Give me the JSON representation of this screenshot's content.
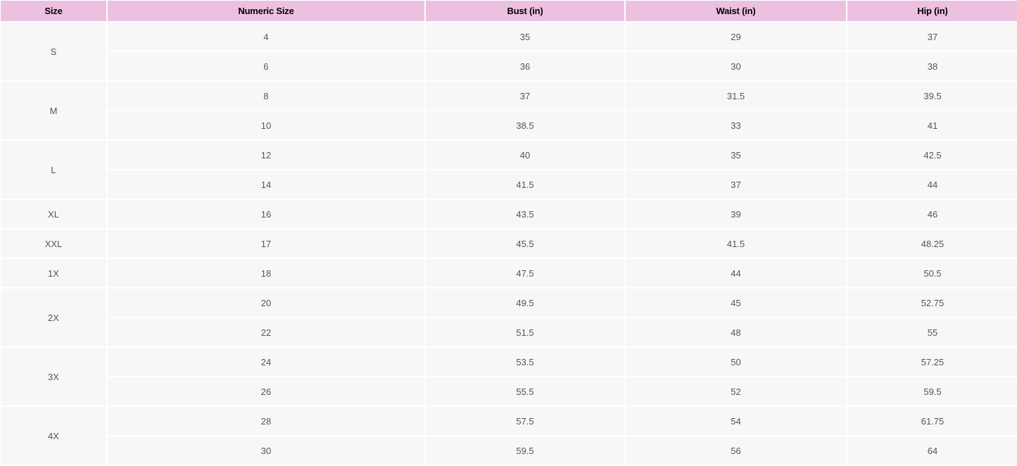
{
  "headers": [
    "Size",
    "Numeric Size",
    "Bust (in)",
    "Waist (in)",
    "Hip (in)"
  ],
  "groups": [
    {
      "size": "S",
      "rows": [
        [
          "4",
          "35",
          "29",
          "37"
        ],
        [
          "6",
          "36",
          "30",
          "38"
        ]
      ]
    },
    {
      "size": "M",
      "rows": [
        [
          "8",
          "37",
          "31.5",
          "39.5"
        ],
        [
          "10",
          "38.5",
          "33",
          "41"
        ]
      ]
    },
    {
      "size": "L",
      "rows": [
        [
          "12",
          "40",
          "35",
          "42.5"
        ],
        [
          "14",
          "41.5",
          "37",
          "44"
        ]
      ]
    },
    {
      "size": "XL",
      "rows": [
        [
          "16",
          "43.5",
          "39",
          "46"
        ]
      ]
    },
    {
      "size": "XXL",
      "rows": [
        [
          "17",
          "45.5",
          "41.5",
          "48.25"
        ]
      ]
    },
    {
      "size": "1X",
      "rows": [
        [
          "18",
          "47.5",
          "44",
          "50.5"
        ]
      ]
    },
    {
      "size": "2X",
      "rows": [
        [
          "20",
          "49.5",
          "45",
          "52.75"
        ],
        [
          "22",
          "51.5",
          "48",
          "55"
        ]
      ]
    },
    {
      "size": "3X",
      "rows": [
        [
          "24",
          "53.5",
          "50",
          "57.25"
        ],
        [
          "26",
          "55.5",
          "52",
          "59.5"
        ]
      ]
    },
    {
      "size": "4X",
      "rows": [
        [
          "28",
          "57.5",
          "54",
          "61.75"
        ],
        [
          "30",
          "59.5",
          "56",
          "64"
        ]
      ]
    }
  ]
}
